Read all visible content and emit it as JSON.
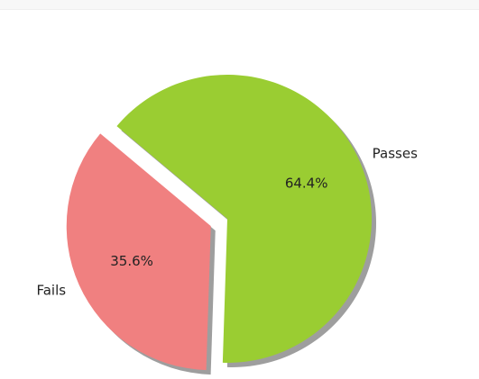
{
  "chart_data": {
    "type": "pie",
    "slices": [
      {
        "label": "Fails",
        "value": 35.6,
        "pct_label": "35.6%",
        "color": "#f08080",
        "exploded": true
      },
      {
        "label": "Passes",
        "value": 64.4,
        "pct_label": "64.4%",
        "color": "#9acd32",
        "exploded": false
      }
    ],
    "shadow": true,
    "start_angle_deg": 140,
    "title": "",
    "legend": false
  }
}
